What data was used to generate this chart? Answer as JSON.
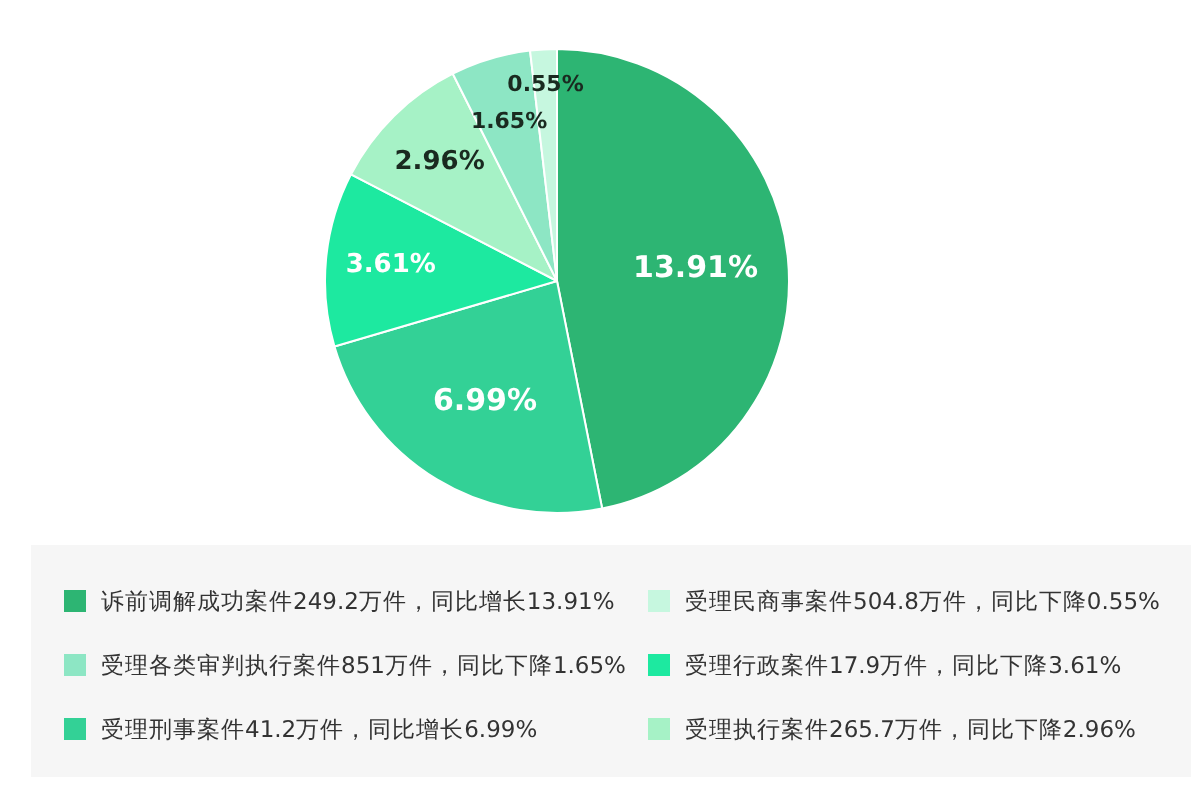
{
  "chart_data": {
    "type": "pie",
    "categories": [
      "诉前调解成功案件249.2万件，同比增长13.91%",
      "受理刑事案件41.2万件，同比增长6.99%",
      "受理行政案件17.9万件，同比下降3.61%",
      "受理执行案件265.7万件，同比下降2.96%",
      "受理各类审判执行案件851万件，同比下降1.65%",
      "受理民商事案件504.8万件，同比下降0.55%"
    ],
    "values": [
      13.91,
      6.99,
      3.61,
      2.96,
      1.65,
      0.55
    ],
    "value_labels": [
      "13.91%",
      "6.99%",
      "3.61%",
      "2.96%",
      "1.65%",
      "0.55%"
    ],
    "colors": [
      "#2db573",
      "#33d196",
      "#1de9a0",
      "#a6f2c6",
      "#8de6c4",
      "#c6f7df"
    ],
    "legend": "bottom"
  }
}
